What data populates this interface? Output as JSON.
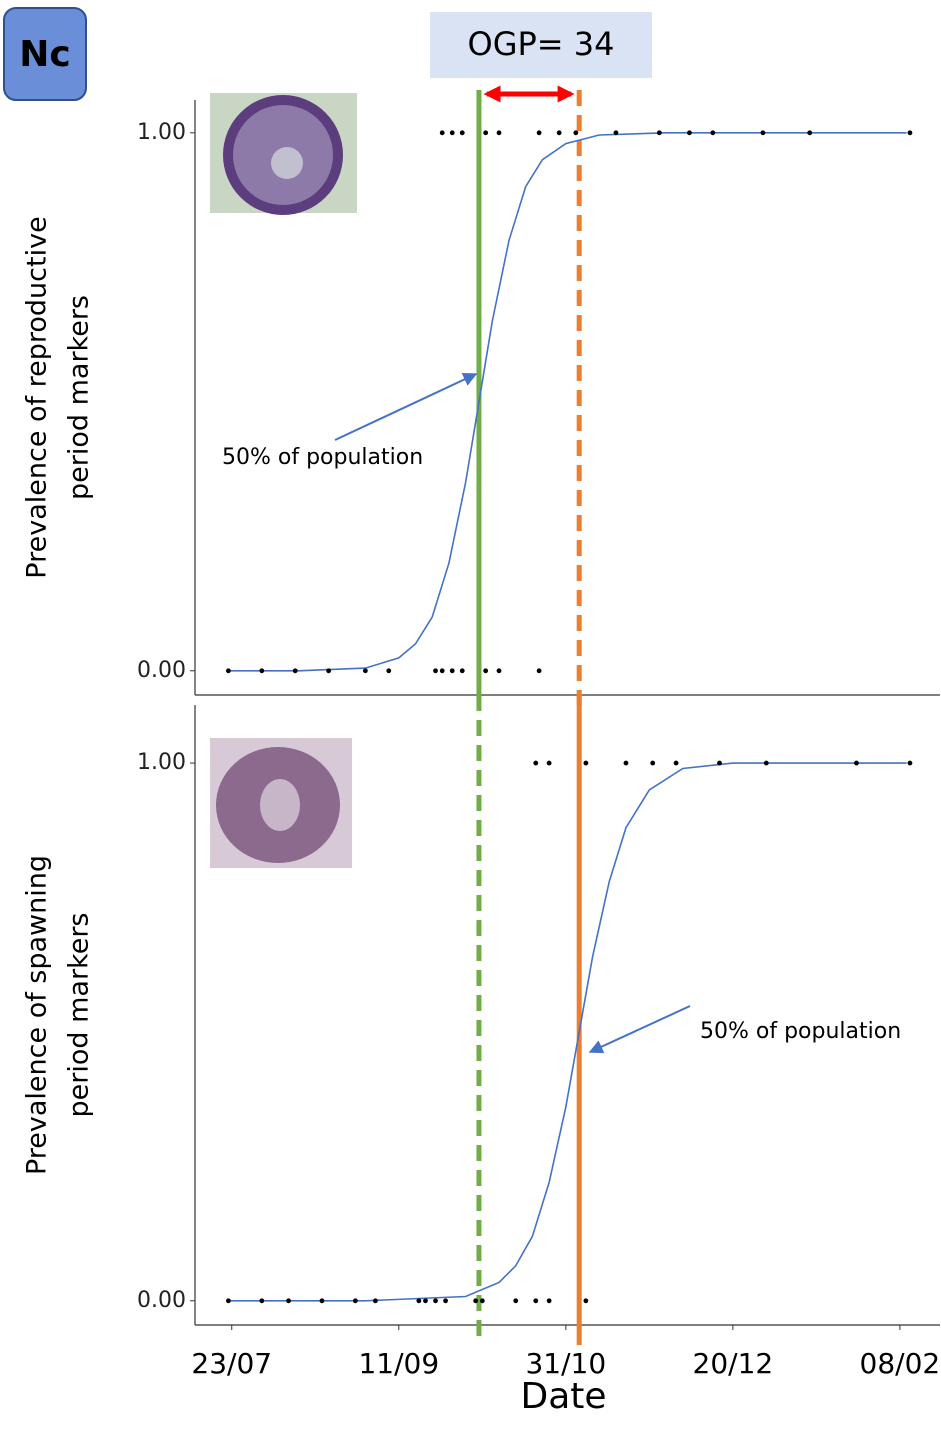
{
  "panel_label": "Nc",
  "chart_data": [
    {
      "type": "scatter",
      "ylabel": [
        "Prevalence of reproductive",
        "period markers"
      ],
      "xlim": [
        "12/07",
        "20/02"
      ],
      "ylim": [
        -0.045,
        1.061
      ],
      "yticks": [
        {
          "value": 0,
          "label": "0.00"
        },
        {
          "value": 1,
          "label": "1.00"
        }
      ],
      "points": {
        "color": "#000000",
        "x": [
          "22/07",
          "01/08",
          "11/08",
          "21/08",
          "01/09",
          "08/09",
          "22/09",
          "24/09",
          "27/09",
          "30/09",
          "07/10",
          "11/10",
          "23/10",
          "24/09",
          "27/09",
          "30/09",
          "07/10",
          "11/10",
          "23/10",
          "29/10",
          "03/11",
          "15/11",
          "28/11",
          "07/12",
          "14/12",
          "29/12",
          "12/01",
          "11/02"
        ],
        "values": [
          0,
          0,
          0,
          0,
          0,
          0,
          0,
          0,
          0,
          0,
          0,
          0,
          0,
          1,
          1,
          1,
          1,
          1,
          1,
          1,
          1,
          1,
          1,
          1,
          1,
          1,
          1,
          1
        ]
      },
      "curve": {
        "color": "#4472c4",
        "x": [
          "22/07",
          "12/08",
          "01/09",
          "11/09",
          "16/09",
          "21/09",
          "26/09",
          "01/10",
          "05/10",
          "09/10",
          "14/10",
          "19/10",
          "24/10",
          "31/10",
          "10/11",
          "30/11",
          "20/12",
          "10/02"
        ],
        "values": [
          0,
          0,
          0.005,
          0.024,
          0.05,
          0.1,
          0.2,
          0.35,
          0.5,
          0.65,
          0.8,
          0.9,
          0.95,
          0.98,
          0.996,
          1,
          1,
          1
        ]
      },
      "vlines": [
        {
          "x": "05/10",
          "color": "#70ad47",
          "dashed": false
        },
        {
          "x": "04/11",
          "color": "#ed7d31",
          "dashed": true
        }
      ],
      "interval": {
        "label": "OGP= 34",
        "from": "05/10",
        "to": "04/11",
        "color": "#ff0000"
      },
      "annotation": "50% of population"
    },
    {
      "type": "scatter",
      "ylabel": [
        "Prevalence of spawning",
        "period markers"
      ],
      "xlabel": "Date",
      "xlim": [
        "12/07",
        "20/02"
      ],
      "xticks": [
        "23/07",
        "11/09",
        "31/10",
        "20/12",
        "08/02"
      ],
      "ylim": [
        -0.045,
        1.108
      ],
      "yticks": [
        {
          "value": 0,
          "label": "0.00"
        },
        {
          "value": 1,
          "label": "1.00"
        }
      ],
      "points": {
        "color": "#000000",
        "x": [
          "22/07",
          "01/08",
          "09/08",
          "19/08",
          "29/08",
          "04/09",
          "17/09",
          "19/09",
          "22/09",
          "25/09",
          "04/10",
          "06/10",
          "16/10",
          "22/10",
          "26/10",
          "06/11",
          "22/10",
          "26/10",
          "06/11",
          "18/11",
          "26/11",
          "03/12",
          "16/12",
          "30/12",
          "26/01",
          "11/02"
        ],
        "values": [
          0,
          0,
          0,
          0,
          0,
          0,
          0,
          0,
          0,
          0,
          0,
          0,
          0,
          0,
          0,
          0,
          1,
          1,
          1,
          1,
          1,
          1,
          1,
          1,
          1,
          1
        ]
      },
      "curve": {
        "color": "#4472c4",
        "x": [
          "22/07",
          "01/09",
          "01/10",
          "11/10",
          "16/10",
          "21/10",
          "26/10",
          "31/10",
          "04/11",
          "08/11",
          "13/11",
          "18/11",
          "25/11",
          "05/12",
          "20/12",
          "09/01",
          "10/02"
        ],
        "values": [
          0,
          0,
          0.008,
          0.034,
          0.065,
          0.12,
          0.22,
          0.36,
          0.5,
          0.64,
          0.78,
          0.88,
          0.95,
          0.99,
          1,
          1,
          1
        ]
      },
      "vlines": [
        {
          "x": "05/10",
          "color": "#70ad47",
          "dashed": true
        },
        {
          "x": "04/11",
          "color": "#ed7d31",
          "dashed": false
        }
      ],
      "annotation": "50% of population"
    }
  ]
}
